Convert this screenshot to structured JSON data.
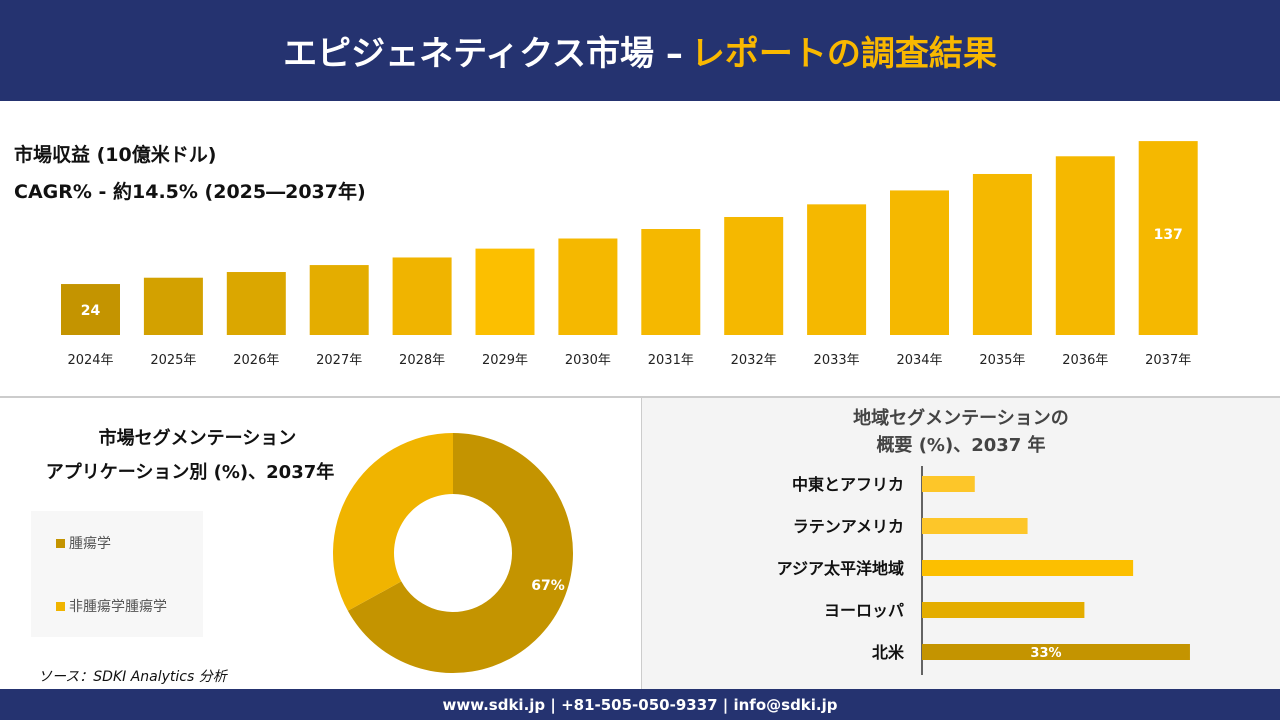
{
  "header": {
    "title_main": "エピジェネティクス市場 –",
    "title_accent": "レポートの調査結果"
  },
  "revenue": {
    "title": "市場収益 (10億米ドル)",
    "cagr": "CAGR% - 約14.5% (2025―2037年)"
  },
  "chart_data": [
    {
      "type": "bar",
      "title": "市場収益 (10億米ドル)",
      "categories": [
        "2024年",
        "2025年",
        "2026年",
        "2027年",
        "2028年",
        "2029年",
        "2030年",
        "2031年",
        "2032年",
        "2033年",
        "2034年",
        "2035年",
        "2036年",
        "2037年"
      ],
      "values": [
        24,
        29,
        33.5,
        39,
        45,
        52,
        60,
        67.5,
        77,
        87,
        98,
        111,
        125,
        137
      ],
      "data_labels": {
        "0": "24",
        "13": "137"
      },
      "colors": [
        "#c49400",
        "#d3a100",
        "#dba700",
        "#e4ad00",
        "#f0b400",
        "#fcbf00",
        "#f5b800",
        "#f5b800",
        "#f5b800",
        "#f5b800",
        "#f5b800",
        "#f5b800",
        "#f5b800",
        "#f5b800"
      ]
    },
    {
      "type": "pie",
      "title": "市場セグメンテーション アプリケーション別 (%)、2037年",
      "series": [
        {
          "name": "腫瘍学",
          "value": 67,
          "label": "67%",
          "color": "#c49400"
        },
        {
          "name": "非腫瘍学腫瘍学",
          "value": 33,
          "label": "",
          "color": "#f0b400"
        }
      ],
      "legend": "left"
    },
    {
      "type": "bar",
      "orientation": "horizontal",
      "title": "地域セグメンテーションの概要 (%)、2037 年",
      "categories": [
        "中東とアフリカ",
        "ラテンアメリカ",
        "アジア太平洋地域",
        "ヨーロッパ",
        "北米"
      ],
      "values": [
        6.5,
        13,
        26,
        20,
        33
      ],
      "data_labels": {
        "4": "33%"
      },
      "colors": [
        "#fdc629",
        "#fdc629",
        "#fcbf00",
        "#e4ad00",
        "#c49400"
      ]
    }
  ],
  "segment": {
    "title1": "市場セグメンテーション",
    "title2": "アプリケーション別 (%)、2037年"
  },
  "region": {
    "title1": "地域セグメンテーションの",
    "title2": "概要 (%)、2037 年"
  },
  "source": "ソース：SDKI Analytics 分析",
  "footer": "www.sdki.jp | +81-505-050-9337 | info@sdki.jp"
}
